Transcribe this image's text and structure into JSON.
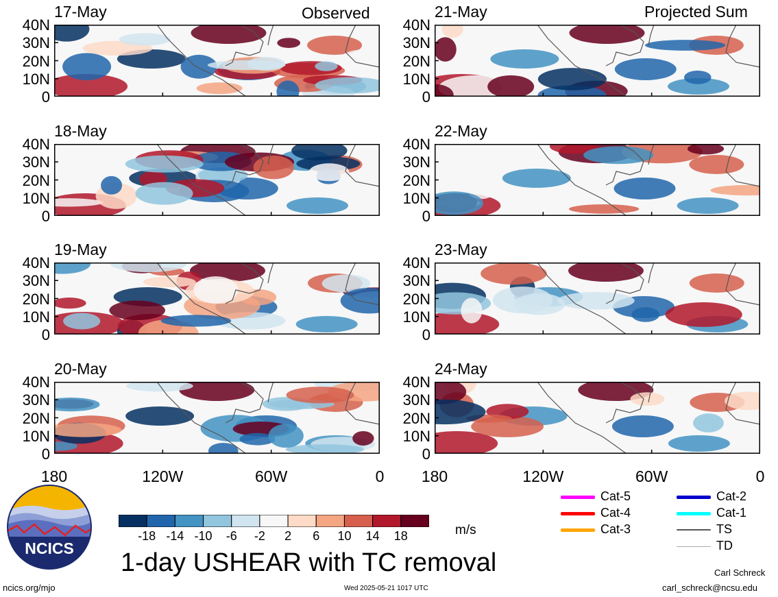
{
  "header": {
    "left_label": "Observed",
    "right_label": "Projected Sum"
  },
  "panels": [
    {
      "date": "17-May",
      "column": "left"
    },
    {
      "date": "18-May",
      "column": "left"
    },
    {
      "date": "19-May",
      "column": "left"
    },
    {
      "date": "20-May",
      "column": "left"
    },
    {
      "date": "21-May",
      "column": "right"
    },
    {
      "date": "22-May",
      "column": "right"
    },
    {
      "date": "23-May",
      "column": "right"
    },
    {
      "date": "24-May",
      "column": "right"
    }
  ],
  "y_ticks": [
    "40N",
    "30N",
    "20N",
    "10N",
    "0"
  ],
  "x_ticks": [
    "180",
    "120W",
    "60W",
    "0"
  ],
  "colorbar": {
    "labels": [
      "-18",
      "-14",
      "-10",
      "-6",
      "-2",
      "2",
      "6",
      "10",
      "14",
      "18"
    ],
    "colors": [
      "#053061",
      "#2166ac",
      "#4393c3",
      "#92c5de",
      "#d1e5f0",
      "#f7f7f7",
      "#fddbc7",
      "#f4a582",
      "#d6604d",
      "#b2182b",
      "#67001f"
    ],
    "units": "m/s"
  },
  "tc_legend": [
    {
      "label": "Cat-5",
      "color": "#ff00ff"
    },
    {
      "label": "Cat-4",
      "color": "#ff0000"
    },
    {
      "label": "Cat-3",
      "color": "#ffa500"
    },
    {
      "label": "Cat-2",
      "color": "#0000cd"
    },
    {
      "label": "Cat-1",
      "color": "#00ffff"
    },
    {
      "label": "TS",
      "color": "#555555"
    },
    {
      "label": "TD",
      "color": "#aaaaaa"
    }
  ],
  "title": "1-day USHEAR with TC removal",
  "logo_text": "NCICS",
  "footer": {
    "site": "ncics.org/mjo",
    "timestamp": "Wed 2025-05-21 1017 UTC",
    "author": "Carl Schreck",
    "email": "carl_schreck@ncsu.edu"
  }
}
